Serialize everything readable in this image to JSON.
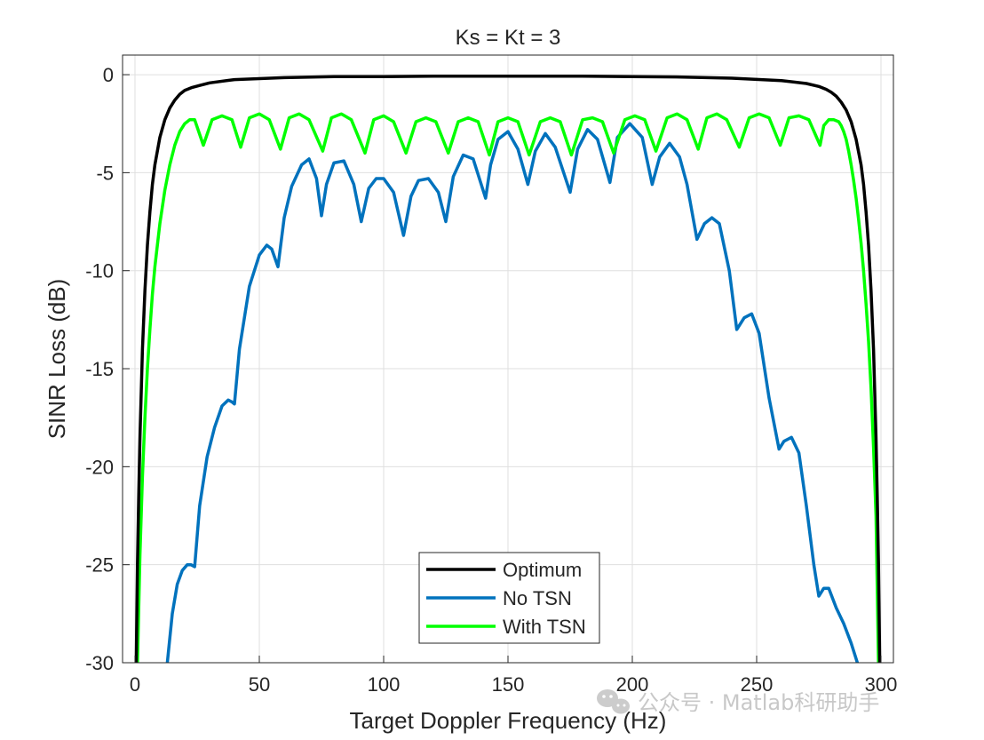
{
  "chart_data": {
    "type": "line",
    "title": "Ks = Kt = 3",
    "xlabel": "Target Doppler Frequency (Hz)",
    "ylabel": "SINR Loss (dB)",
    "xlim": [
      -5,
      305
    ],
    "ylim": [
      -30,
      1
    ],
    "xticks": [
      0,
      50,
      100,
      150,
      200,
      250,
      300
    ],
    "yticks": [
      0,
      -5,
      -10,
      -15,
      -20,
      -25,
      -30
    ],
    "xtick_labels": [
      "0",
      "50",
      "100",
      "150",
      "200",
      "250",
      "300"
    ],
    "ytick_labels": [
      "0",
      "-5",
      "-10",
      "-15",
      "-20",
      "-25",
      "-30"
    ],
    "grid": true,
    "legend_location": "bottom-center",
    "series": [
      {
        "name": "Optimum",
        "color": "#000000",
        "x": [
          0.5,
          1,
          1.5,
          2,
          3,
          4,
          5,
          6,
          7,
          8,
          10,
          12,
          14,
          16,
          18,
          20,
          23,
          26,
          30,
          40,
          60,
          80,
          100,
          120,
          150,
          180,
          200,
          220,
          240,
          260,
          270,
          275,
          278,
          280,
          282,
          284,
          286,
          288,
          290,
          292,
          293,
          294,
          295,
          296,
          297,
          298,
          298.5,
          299,
          299.5
        ],
        "y": [
          -30,
          -25,
          -21.5,
          -18.5,
          -14,
          -11,
          -8.7,
          -7,
          -5.6,
          -4.6,
          -3.2,
          -2.3,
          -1.7,
          -1.3,
          -1.0,
          -0.8,
          -0.65,
          -0.55,
          -0.42,
          -0.25,
          -0.15,
          -0.1,
          -0.1,
          -0.08,
          -0.08,
          -0.08,
          -0.1,
          -0.12,
          -0.18,
          -0.3,
          -0.45,
          -0.6,
          -0.75,
          -0.9,
          -1.1,
          -1.4,
          -1.8,
          -2.4,
          -3.3,
          -4.6,
          -5.6,
          -7,
          -8.7,
          -11,
          -14,
          -18.5,
          -21.5,
          -25,
          -30
        ]
      },
      {
        "name": "No TSN",
        "color": "#0072BD",
        "x": [
          13,
          15,
          17,
          19,
          21,
          22.5,
          24,
          26,
          29,
          32,
          35,
          37.5,
          39,
          40,
          42,
          46,
          50,
          53,
          55,
          57.5,
          60,
          63,
          67,
          70,
          73,
          75,
          77,
          80,
          84,
          88,
          91,
          94,
          97,
          100,
          104,
          108,
          111,
          114,
          118,
          122,
          125,
          128,
          132,
          136,
          141,
          143,
          146,
          150,
          154,
          158,
          161,
          165,
          169,
          175,
          178,
          182,
          186,
          191,
          194,
          199,
          204,
          208,
          211,
          215,
          219,
          222,
          226,
          229,
          232,
          235,
          239,
          242,
          245,
          248,
          251,
          255,
          259,
          261,
          264,
          267,
          270,
          273,
          275,
          277,
          279,
          282,
          285,
          288,
          290.5
        ],
        "y": [
          -30,
          -27.5,
          -26,
          -25.3,
          -25,
          -25,
          -25.1,
          -22,
          -19.5,
          -18,
          -16.9,
          -16.6,
          -16.7,
          -16.8,
          -14,
          -10.8,
          -9.2,
          -8.7,
          -8.9,
          -9.8,
          -7.3,
          -5.7,
          -4.6,
          -4.3,
          -5.3,
          -7.2,
          -5.6,
          -4.5,
          -4.4,
          -5.6,
          -7.5,
          -5.8,
          -5.3,
          -5.3,
          -6,
          -8.2,
          -6.2,
          -5.4,
          -5.3,
          -6,
          -7.5,
          -5.2,
          -4.1,
          -4.3,
          -6.3,
          -4.6,
          -3.3,
          -2.9,
          -3.8,
          -5.6,
          -3.9,
          -3.0,
          -3.7,
          -6.0,
          -3.8,
          -2.8,
          -3.3,
          -5.5,
          -3.2,
          -2.5,
          -3.2,
          -5.6,
          -4.2,
          -3.5,
          -4.2,
          -5.6,
          -8.4,
          -7.6,
          -7.3,
          -7.6,
          -10,
          -13,
          -12.4,
          -12.2,
          -13.2,
          -16.5,
          -19.1,
          -18.7,
          -18.5,
          -19.3,
          -22,
          -25,
          -26.6,
          -26.2,
          -26.2,
          -27.2,
          -28,
          -29,
          -30
        ]
      },
      {
        "name": "With TSN",
        "color": "#00FF00",
        "x": [
          1,
          2,
          3,
          4,
          5,
          6,
          7,
          8,
          10,
          12,
          14,
          16,
          18,
          20,
          22,
          24,
          27.5,
          31,
          35,
          39,
          42.5,
          46,
          50,
          54,
          58.5,
          62,
          66,
          70,
          75.5,
          79,
          83,
          87,
          92.5,
          96,
          100,
          104,
          109,
          113,
          117,
          121,
          126,
          130,
          134,
          138,
          142.5,
          146,
          150,
          154,
          158.5,
          163,
          167,
          171,
          175.5,
          180,
          184,
          188,
          192.5,
          197,
          201,
          205,
          209.5,
          214,
          218,
          222,
          226.5,
          230,
          234,
          238,
          243,
          247,
          251,
          255,
          259.5,
          263,
          267,
          271,
          275.5,
          277,
          279,
          281,
          283,
          284,
          285,
          286,
          287,
          288,
          289,
          290,
          291,
          292,
          293,
          294,
          295,
          296,
          297,
          298,
          299
        ],
        "y": [
          -30,
          -24.5,
          -20.5,
          -17.5,
          -15,
          -13,
          -11.2,
          -9.8,
          -7.6,
          -5.9,
          -4.6,
          -3.6,
          -2.9,
          -2.5,
          -2.3,
          -2.3,
          -3.6,
          -2.3,
          -2.1,
          -2.3,
          -3.7,
          -2.2,
          -2.0,
          -2.3,
          -3.8,
          -2.2,
          -2.0,
          -2.3,
          -3.9,
          -2.2,
          -2.0,
          -2.3,
          -4.0,
          -2.3,
          -2.1,
          -2.4,
          -4.0,
          -2.4,
          -2.2,
          -2.4,
          -4.0,
          -2.4,
          -2.2,
          -2.4,
          -4.1,
          -2.4,
          -2.2,
          -2.4,
          -4.1,
          -2.4,
          -2.2,
          -2.4,
          -4.1,
          -2.3,
          -2.2,
          -2.4,
          -4.0,
          -2.3,
          -2.1,
          -2.3,
          -3.9,
          -2.2,
          -2.0,
          -2.3,
          -3.8,
          -2.2,
          -2.0,
          -2.3,
          -3.7,
          -2.2,
          -2.0,
          -2.2,
          -3.6,
          -2.2,
          -2.1,
          -2.3,
          -3.6,
          -2.6,
          -2.3,
          -2.3,
          -2.4,
          -2.6,
          -2.9,
          -3.3,
          -3.9,
          -4.6,
          -5.4,
          -6.3,
          -7.4,
          -8.6,
          -10,
          -11.7,
          -13.6,
          -16,
          -19,
          -22.5,
          -30
        ]
      }
    ]
  },
  "watermark": {
    "text": "公众号 · Matlab科研助手",
    "icon": "wechat-icon"
  }
}
